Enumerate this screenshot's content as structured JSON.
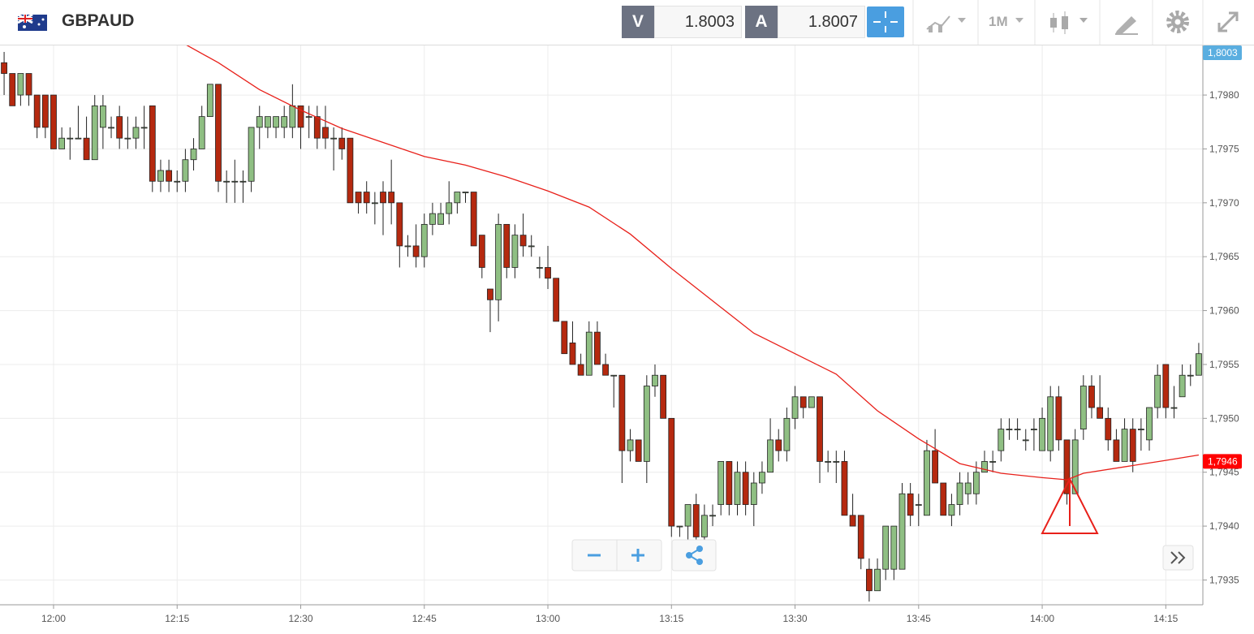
{
  "header": {
    "symbol": "GBPAUD",
    "bid_label": "V",
    "bid": 1.8003,
    "ask_label": "A",
    "ask": 1.8007,
    "timeframe": "1M"
  },
  "chart_data": {
    "type": "candlestick",
    "x": [
      "11:54",
      "11:55",
      "11:56",
      "11:57",
      "11:58",
      "11:59",
      "12:00",
      "12:01",
      "12:02",
      "12:03",
      "12:04",
      "12:05",
      "12:06",
      "12:07",
      "12:08",
      "12:09",
      "12:10",
      "12:11",
      "12:12",
      "12:13",
      "12:14",
      "12:15",
      "12:16",
      "12:17",
      "12:18",
      "12:19",
      "12:20",
      "12:21",
      "12:22",
      "12:23",
      "12:24",
      "12:25",
      "12:26",
      "12:27",
      "12:28",
      "12:29",
      "12:30",
      "12:31",
      "12:32",
      "12:33",
      "12:34",
      "12:35",
      "12:36",
      "12:37",
      "12:38",
      "12:39",
      "12:40",
      "12:41",
      "12:42",
      "12:43",
      "12:44",
      "12:45",
      "12:46",
      "12:47",
      "12:48",
      "12:49",
      "12:50",
      "12:51",
      "12:52",
      "12:53",
      "12:54",
      "12:55",
      "12:56",
      "12:57",
      "12:58",
      "12:59",
      "13:00",
      "13:01",
      "13:02",
      "13:03",
      "13:04",
      "13:05",
      "13:06",
      "13:07",
      "13:08",
      "13:09",
      "13:10",
      "13:11",
      "13:12",
      "13:13",
      "13:14",
      "13:15",
      "13:16",
      "13:17",
      "13:18",
      "13:19",
      "13:20",
      "13:21",
      "13:22",
      "13:23",
      "13:24",
      "13:25",
      "13:26",
      "13:27",
      "13:28",
      "13:29",
      "13:30",
      "13:31",
      "13:32",
      "13:33",
      "13:34",
      "13:35",
      "13:36",
      "13:37",
      "13:38",
      "13:39",
      "13:40",
      "13:41",
      "13:42",
      "13:43",
      "13:44",
      "13:45",
      "13:46",
      "13:47",
      "13:48",
      "13:49",
      "13:50",
      "13:51",
      "13:52",
      "13:53",
      "13:54",
      "13:55",
      "13:56",
      "13:57",
      "13:58",
      "13:59",
      "14:00",
      "14:01",
      "14:02",
      "14:03",
      "14:04",
      "14:05",
      "14:06",
      "14:07",
      "14:08",
      "14:09",
      "14:10",
      "14:11",
      "14:12",
      "14:13",
      "14:14",
      "14:15",
      "14:16",
      "14:17",
      "14:18",
      "14:19"
    ],
    "open": [
      1.7983,
      1.7982,
      1.798,
      1.7982,
      1.798,
      1.798,
      1.798,
      1.7975,
      1.7976,
      1.7976,
      1.7976,
      1.7974,
      1.7977,
      1.7977,
      1.7978,
      1.7976,
      1.7976,
      1.7977,
      1.7979,
      1.7972,
      1.7973,
      1.7972,
      1.7972,
      1.7974,
      1.7975,
      1.7978,
      1.7981,
      1.7972,
      1.7972,
      1.7972,
      1.7972,
      1.7977,
      1.7977,
      1.7977,
      1.7977,
      1.7977,
      1.7979,
      1.7978,
      1.7978,
      1.7977,
      1.7976,
      1.7976,
      1.7976,
      1.7971,
      1.7971,
      1.797,
      1.7971,
      1.7971,
      1.797,
      1.7966,
      1.7966,
      1.7965,
      1.7968,
      1.7968,
      1.7969,
      1.797,
      1.7971,
      1.7971,
      1.7967,
      1.7962,
      1.7961,
      1.7968,
      1.7964,
      1.7967,
      1.7966,
      1.7964,
      1.7964,
      1.7963,
      1.7959,
      1.7957,
      1.7955,
      1.7954,
      1.7958,
      1.7955,
      1.7954,
      1.7954,
      1.7947,
      1.7948,
      1.7946,
      1.7953,
      1.7954,
      1.795,
      1.794,
      1.794,
      1.7942,
      1.7939,
      1.7941,
      1.7942,
      1.7946,
      1.7942,
      1.7945,
      1.7942,
      1.7944,
      1.7945,
      1.7948,
      1.7947,
      1.795,
      1.7952,
      1.7951,
      1.7952,
      1.7946,
      1.7946,
      1.7946,
      1.7941,
      1.7941,
      1.7936,
      1.7934,
      1.7936,
      1.7936,
      1.7936,
      1.7943,
      1.7942,
      1.7941,
      1.7947,
      1.7944,
      1.7941,
      1.7942,
      1.7943,
      1.7943,
      1.7945,
      1.7946,
      1.7947,
      1.7949,
      1.7949,
      1.7948,
      1.7949,
      1.7947,
      1.7947,
      1.7952,
      1.7948,
      1.7943,
      1.7949,
      1.7953,
      1.7951,
      1.795,
      1.7948,
      1.7946,
      1.7949,
      1.7949,
      1.7948,
      1.7951,
      1.7955,
      1.7951,
      1.7952,
      1.7954,
      1.7954
    ],
    "high": [
      1.7984,
      1.7982,
      1.7982,
      1.7982,
      1.798,
      1.798,
      1.798,
      1.7977,
      1.7977,
      1.7979,
      1.7978,
      1.798,
      1.798,
      1.7978,
      1.7979,
      1.7978,
      1.7978,
      1.7979,
      1.7979,
      1.7974,
      1.7974,
      1.7973,
      1.7975,
      1.7976,
      1.7979,
      1.7981,
      1.7981,
      1.7973,
      1.7974,
      1.7973,
      1.7977,
      1.7979,
      1.7978,
      1.7978,
      1.7979,
      1.7981,
      1.7979,
      1.7979,
      1.7979,
      1.7979,
      1.7977,
      1.7977,
      1.7976,
      1.7971,
      1.7972,
      1.7971,
      1.7972,
      1.7974,
      1.797,
      1.7967,
      1.7968,
      1.7969,
      1.797,
      1.797,
      1.7972,
      1.7971,
      1.7971,
      1.7971,
      1.7967,
      1.7962,
      1.7969,
      1.7968,
      1.7968,
      1.7969,
      1.7967,
      1.7965,
      1.7966,
      1.7963,
      1.7959,
      1.7959,
      1.7956,
      1.7959,
      1.7959,
      1.7956,
      1.7954,
      1.7954,
      1.7949,
      1.7948,
      1.7954,
      1.7955,
      1.7954,
      1.795,
      1.794,
      1.7942,
      1.7943,
      1.7942,
      1.7942,
      1.7946,
      1.7946,
      1.7946,
      1.7946,
      1.7945,
      1.7946,
      1.795,
      1.7949,
      1.7951,
      1.7953,
      1.7952,
      1.7952,
      1.7952,
      1.7947,
      1.7947,
      1.7947,
      1.7943,
      1.7941,
      1.7937,
      1.7937,
      1.794,
      1.794,
      1.7944,
      1.7944,
      1.7943,
      1.7948,
      1.7949,
      1.7944,
      1.7943,
      1.7945,
      1.7945,
      1.7946,
      1.7947,
      1.7947,
      1.795,
      1.795,
      1.795,
      1.7949,
      1.795,
      1.7951,
      1.7953,
      1.7953,
      1.7948,
      1.7949,
      1.7954,
      1.7954,
      1.7954,
      1.7951,
      1.7949,
      1.795,
      1.795,
      1.795,
      1.7951,
      1.7955,
      1.7955,
      1.7953,
      1.7955,
      1.7955,
      1.7957
    ],
    "low": [
      1.798,
      1.7979,
      1.7979,
      1.7979,
      1.7976,
      1.7976,
      1.7975,
      1.7975,
      1.7974,
      1.7976,
      1.7974,
      1.7974,
      1.7975,
      1.7976,
      1.7975,
      1.7975,
      1.7975,
      1.7975,
      1.7971,
      1.7971,
      1.7971,
      1.7971,
      1.7971,
      1.7973,
      1.7975,
      1.7978,
      1.7971,
      1.797,
      1.797,
      1.797,
      1.7971,
      1.7975,
      1.7976,
      1.7976,
      1.7976,
      1.7976,
      1.7975,
      1.7976,
      1.7975,
      1.7975,
      1.7973,
      1.7974,
      1.797,
      1.7969,
      1.7969,
      1.7968,
      1.7967,
      1.7968,
      1.7964,
      1.7965,
      1.7964,
      1.7964,
      1.7967,
      1.7968,
      1.7968,
      1.7969,
      1.797,
      1.7966,
      1.7963,
      1.7958,
      1.7959,
      1.7963,
      1.7963,
      1.7965,
      1.7965,
      1.7963,
      1.7962,
      1.7959,
      1.7956,
      1.7955,
      1.7954,
      1.7954,
      1.7955,
      1.7954,
      1.7951,
      1.7944,
      1.7946,
      1.7946,
      1.7944,
      1.7952,
      1.795,
      1.7939,
      1.7939,
      1.7938,
      1.7937,
      1.7938,
      1.794,
      1.7941,
      1.7941,
      1.7941,
      1.7941,
      1.794,
      1.7943,
      1.7945,
      1.7946,
      1.7946,
      1.7949,
      1.795,
      1.7951,
      1.7944,
      1.7945,
      1.7944,
      1.7941,
      1.794,
      1.7936,
      1.7933,
      1.7934,
      1.7935,
      1.7935,
      1.7936,
      1.794,
      1.794,
      1.7941,
      1.7944,
      1.7941,
      1.794,
      1.7941,
      1.7942,
      1.7942,
      1.7945,
      1.7945,
      1.7946,
      1.7948,
      1.7948,
      1.7947,
      1.7947,
      1.7947,
      1.7946,
      1.7947,
      1.7942,
      1.7943,
      1.7948,
      1.795,
      1.795,
      1.7947,
      1.7946,
      1.7946,
      1.7945,
      1.7947,
      1.7947,
      1.795,
      1.795,
      1.795,
      1.7952,
      1.7953,
      1.7954
    ],
    "close": [
      1.7982,
      1.7979,
      1.7982,
      1.798,
      1.7977,
      1.7977,
      1.7975,
      1.7976,
      1.7976,
      1.7976,
      1.7974,
      1.7979,
      1.7979,
      1.7977,
      1.7976,
      1.7976,
      1.7977,
      1.7977,
      1.7972,
      1.7973,
      1.7972,
      1.7972,
      1.7974,
      1.7975,
      1.7978,
      1.7981,
      1.7972,
      1.7972,
      1.7972,
      1.7972,
      1.7977,
      1.7978,
      1.7978,
      1.7978,
      1.7978,
      1.7979,
      1.7977,
      1.7978,
      1.7976,
      1.7976,
      1.7976,
      1.7975,
      1.797,
      1.797,
      1.797,
      1.797,
      1.797,
      1.797,
      1.7966,
      1.7966,
      1.7965,
      1.7968,
      1.7969,
      1.7969,
      1.797,
      1.7971,
      1.7971,
      1.7966,
      1.7964,
      1.7961,
      1.7968,
      1.7964,
      1.7967,
      1.7966,
      1.7966,
      1.7964,
      1.7963,
      1.7959,
      1.7956,
      1.7955,
      1.7954,
      1.7958,
      1.7955,
      1.7954,
      1.7954,
      1.7947,
      1.7948,
      1.7946,
      1.7953,
      1.7954,
      1.795,
      1.794,
      1.794,
      1.7942,
      1.7939,
      1.7941,
      1.7941,
      1.7946,
      1.7942,
      1.7945,
      1.7942,
      1.7944,
      1.7945,
      1.7948,
      1.7947,
      1.795,
      1.7952,
      1.7951,
      1.7952,
      1.7946,
      1.7946,
      1.7946,
      1.7941,
      1.794,
      1.7937,
      1.7934,
      1.7936,
      1.794,
      1.794,
      1.7943,
      1.7941,
      1.7942,
      1.7947,
      1.7944,
      1.7941,
      1.7942,
      1.7944,
      1.7944,
      1.7945,
      1.7946,
      1.7946,
      1.7949,
      1.7949,
      1.7949,
      1.7948,
      1.7949,
      1.795,
      1.7952,
      1.7948,
      1.7943,
      1.7948,
      1.7953,
      1.7951,
      1.795,
      1.7948,
      1.7946,
      1.7949,
      1.7946,
      1.7949,
      1.7951,
      1.7954,
      1.7951,
      1.7951,
      1.7954,
      1.7954,
      1.7956
    ],
    "up_color": "#8fbf83",
    "down_color": "#b5290f",
    "overlay": {
      "type": "line",
      "color": "#e8201a",
      "x": [
        "12:16",
        "12:20",
        "12:25",
        "12:30",
        "12:35",
        "12:40",
        "12:45",
        "12:50",
        "12:55",
        "13:00",
        "13:05",
        "13:10",
        "13:15",
        "13:20",
        "13:25",
        "13:30",
        "13:35",
        "13:40",
        "13:45",
        "13:50",
        "13:55",
        "14:00",
        "14:03",
        "14:05",
        "14:10",
        "14:15",
        "14:19"
      ],
      "values": [
        1.79847,
        1.7983,
        1.79805,
        1.79786,
        1.79769,
        1.79756,
        1.79743,
        1.79735,
        1.79724,
        1.79711,
        1.79696,
        1.79671,
        1.79639,
        1.79609,
        1.79579,
        1.7956,
        1.79541,
        1.79507,
        1.79481,
        1.79458,
        1.79449,
        1.79445,
        1.79443,
        1.79449,
        1.79455,
        1.79461,
        1.79466
      ]
    },
    "price_tags": [
      {
        "value": 1.8003,
        "label": "1,8003",
        "color": "#5aaee0"
      },
      {
        "value": 1.7946,
        "label": "1,7946",
        "color": "#ff0000"
      }
    ],
    "xlim": [
      "11:54",
      "14:20"
    ],
    "xticks": [
      "12:00",
      "12:15",
      "12:30",
      "12:45",
      "13:00",
      "13:15",
      "13:30",
      "13:45",
      "14:00",
      "14:15"
    ],
    "ylim": [
      1.79327,
      1.79846
    ],
    "yticks": [
      {
        "value": 1.7935,
        "label": "1,7935"
      },
      {
        "value": 1.794,
        "label": "1,7940"
      },
      {
        "value": 1.7945,
        "label": "1,7945"
      },
      {
        "value": 1.795,
        "label": "1,7950"
      },
      {
        "value": 1.7955,
        "label": "1,7955"
      },
      {
        "value": 1.796,
        "label": "1,7960"
      },
      {
        "value": 1.7965,
        "label": "1,7965"
      },
      {
        "value": 1.797,
        "label": "1,7970"
      },
      {
        "value": 1.7975,
        "label": "1,7975"
      },
      {
        "value": 1.798,
        "label": "1,7980"
      }
    ],
    "grid": true
  }
}
